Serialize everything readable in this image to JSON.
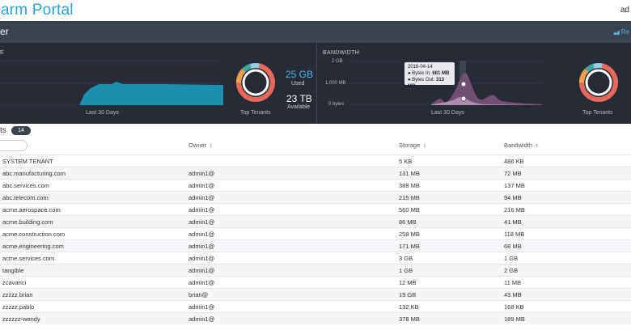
{
  "header": {
    "brand": "arm Portal",
    "user": "ad"
  },
  "subheader": {
    "title": "er",
    "link_label": "Re"
  },
  "storage_panel": {
    "label": "E",
    "caption_days": "Last 30 Days",
    "caption_tenants": "Top Tenants",
    "used_value": "25 GB",
    "used_label": "Used",
    "available_value": "23 TB",
    "available_label": "Available"
  },
  "bandwidth_panel": {
    "label": "BANDWIDTH",
    "axis_ticks": [
      "2 GB",
      "1,000 MB",
      "0 bytes"
    ],
    "caption_days": "Last 30 Days",
    "caption_tenants": "Top Tenants",
    "tooltip": {
      "date": "2016-04-14",
      "bytes_in_label": "● Bytes In:",
      "bytes_in_value": "681 MB",
      "bytes_out_label": "● Bytes Out:",
      "bytes_out_value": "313 MB"
    }
  },
  "colors": {
    "accent": "#2aa3d6",
    "storage_fill": "#1b8fb0",
    "bandwidth_fill": "#6f4f72",
    "ring_main": "#e8675c",
    "ring_orange": "#f0a04b"
  },
  "table": {
    "title": "ts",
    "count": "14",
    "columns": {
      "owner": "Owner",
      "storage": "Storage",
      "bandwidth": "Bandwidth"
    },
    "rows": [
      {
        "name": "SYSTEM TENANT",
        "owner": "",
        "storage": "5 KB",
        "bandwidth": "486 KB"
      },
      {
        "name": "abc.manufacturing.com",
        "owner": "admin1@",
        "storage": "131 MB",
        "bandwidth": "72 MB"
      },
      {
        "name": "abc.services.com",
        "owner": "admin1@",
        "storage": "388 MB",
        "bandwidth": "137 MB"
      },
      {
        "name": "abc.telecom.com",
        "owner": "admin1@",
        "storage": "215 MB",
        "bandwidth": "94 MB"
      },
      {
        "name": "acme.aerospace.com",
        "owner": "admin1@",
        "storage": "560 MB",
        "bandwidth": "216 MB"
      },
      {
        "name": "acme.building.com",
        "owner": "admin1@",
        "storage": "86 MB",
        "bandwidth": "41 MB"
      },
      {
        "name": "acme.construction.com",
        "owner": "admin1@",
        "storage": "259 MB",
        "bandwidth": "118 MB"
      },
      {
        "name": "acme.engineering.com",
        "owner": "admin1@",
        "storage": "171 MB",
        "bandwidth": "68 MB"
      },
      {
        "name": "acme.services.com",
        "owner": "admin1@",
        "storage": "3 GB",
        "bandwidth": "1 GB"
      },
      {
        "name": "tangible",
        "owner": "admin1@",
        "storage": "1 GB",
        "bandwidth": "2 GB"
      },
      {
        "name": "zcavarici",
        "owner": "admin1@",
        "storage": "12 MB",
        "bandwidth": "11 MB"
      },
      {
        "name": "zzzzz.brian",
        "owner": "brian@",
        "storage": "19 GB",
        "bandwidth": "43 MB"
      },
      {
        "name": "zzzzz.pablo",
        "owner": "admin1@",
        "storage": "132 KB",
        "bandwidth": "168 KB"
      },
      {
        "name": "zzzzzz-wendy",
        "owner": "admin1@",
        "storage": "378 MB",
        "bandwidth": "189 MB"
      }
    ]
  }
}
